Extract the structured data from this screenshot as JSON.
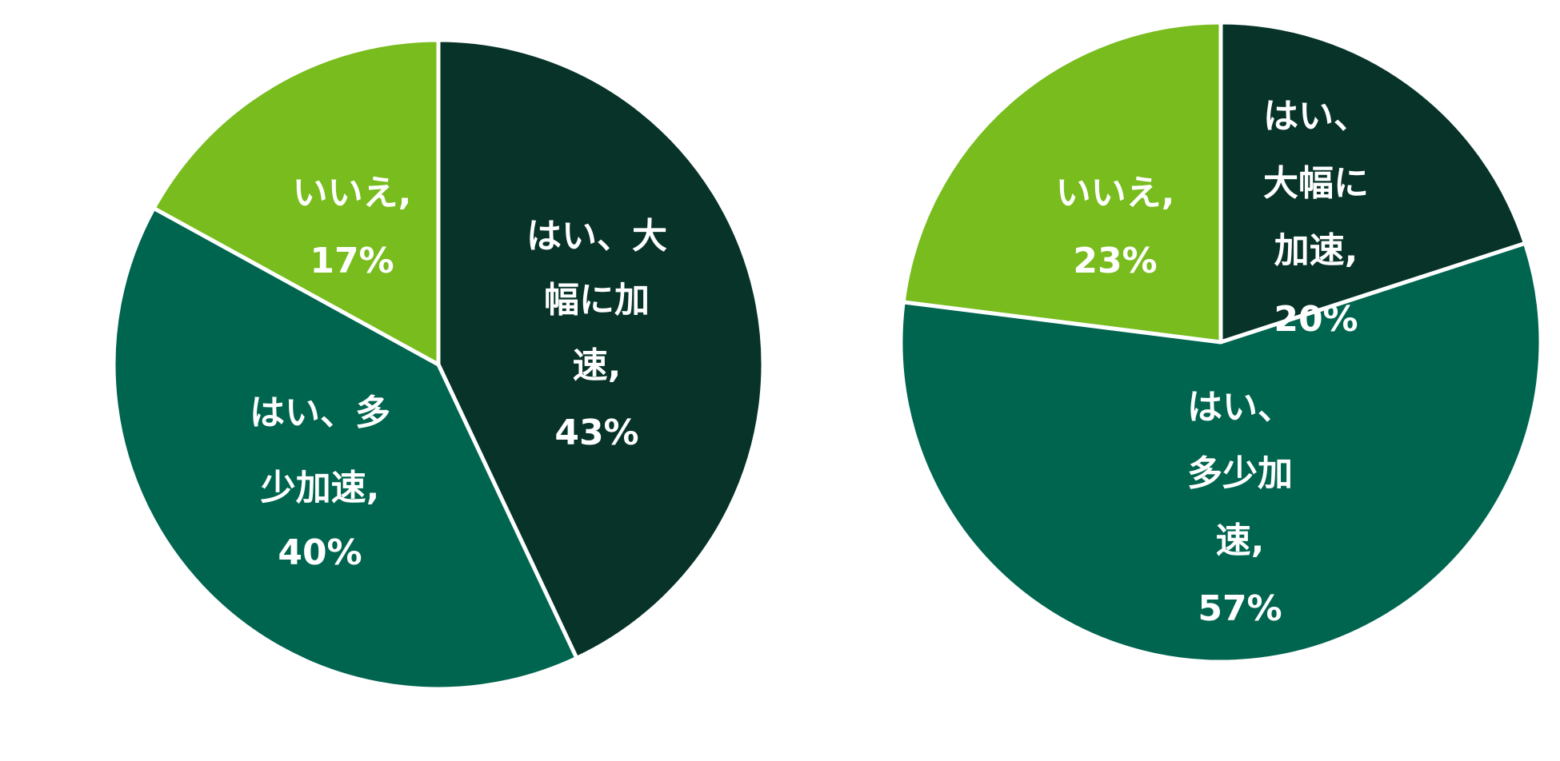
{
  "chart_data": [
    {
      "type": "pie",
      "start": "top",
      "direction": "clockwise",
      "slices": [
        {
          "label_lines": [
            "はい、大",
            "幅に加",
            "速,",
            "43%"
          ],
          "category": "はい、大幅に加速",
          "value": 43,
          "color": "#073328"
        },
        {
          "label_lines": [
            "はい、多",
            "少加速,",
            "40%"
          ],
          "category": "はい、多少加速",
          "value": 40,
          "color": "#00654F"
        },
        {
          "label_lines": [
            "いいえ,",
            "17%"
          ],
          "category": "いいえ",
          "value": 17,
          "color": "#78BC1E"
        }
      ]
    },
    {
      "type": "pie",
      "start": "top",
      "direction": "clockwise",
      "slices": [
        {
          "label_lines": [
            "はい、",
            "大幅に",
            "加速,",
            "20%"
          ],
          "category": "はい、大幅に加速",
          "value": 20,
          "color": "#073328"
        },
        {
          "label_lines": [
            "はい、",
            "多少加",
            "速,",
            "57%"
          ],
          "category": "はい、多少加速",
          "value": 57,
          "color": "#00654F"
        },
        {
          "label_lines": [
            "いいえ,",
            "23%"
          ],
          "category": "いいえ",
          "value": 23,
          "color": "#78BC1E"
        }
      ]
    }
  ]
}
